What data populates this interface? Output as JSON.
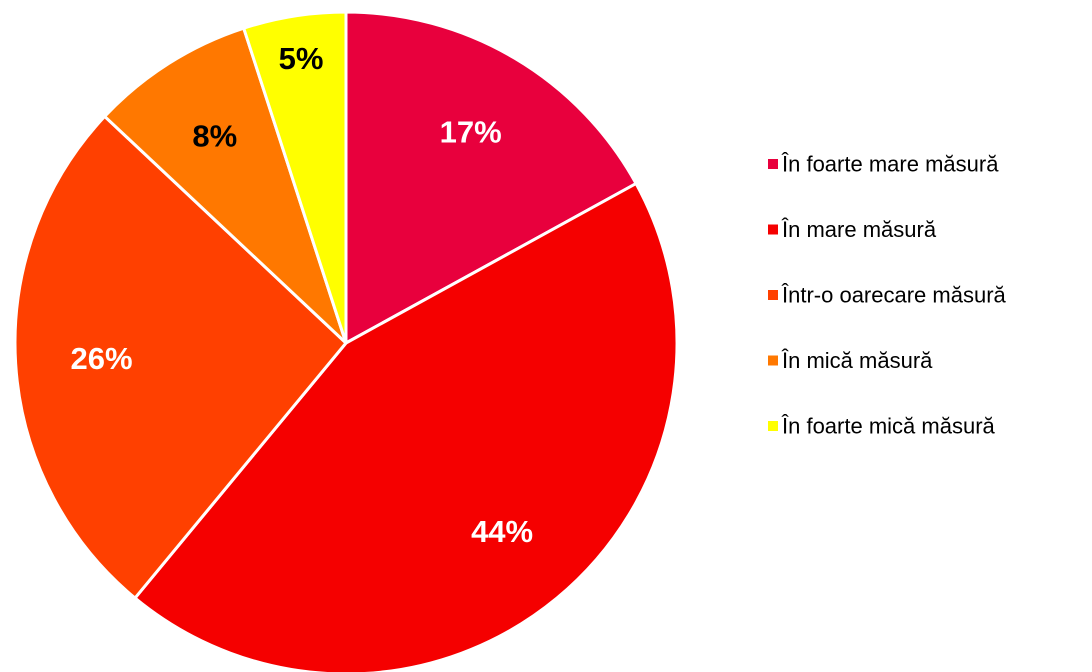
{
  "chart_data": {
    "type": "pie",
    "start_angle_deg": 0,
    "direction": "clockwise",
    "legend_position": "right",
    "slices": [
      {
        "label": "În foarte mare măsură",
        "value": 17,
        "display": "17%",
        "color": "#E8003D",
        "label_color": "#FFFFFF"
      },
      {
        "label": "În mare măsură",
        "value": 44,
        "display": "44%",
        "color": "#F50000",
        "label_color": "#FFFFFF"
      },
      {
        "label": "Într-o oarecare măsură",
        "value": 26,
        "display": "26%",
        "color": "#FF4000",
        "label_color": "#FFFFFF"
      },
      {
        "label": "În mică măsură",
        "value": 8,
        "display": "8%",
        "color": "#FF7800",
        "label_color": "#000000"
      },
      {
        "label": "În foarte mică măsură",
        "value": 5,
        "display": "5%",
        "color": "#FFFF00",
        "label_color": "#000000"
      }
    ]
  }
}
